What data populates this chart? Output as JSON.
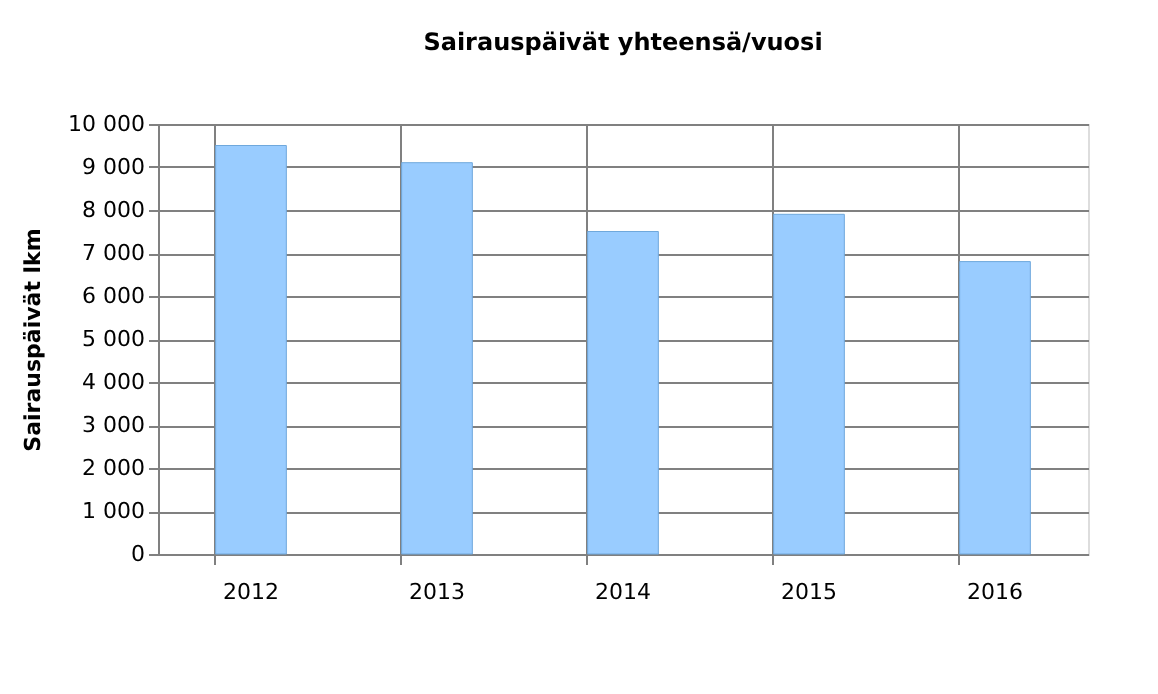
{
  "chart_data": {
    "type": "bar",
    "title": "Sairauspäivät yhteensä/vuosi",
    "ylabel": "Sairauspäivät  lkm",
    "categories": [
      "2012",
      "2013",
      "2014",
      "2015",
      "2016"
    ],
    "values": [
      9500,
      9100,
      7500,
      7900,
      6800
    ],
    "color": "#99ccff",
    "ylim": [
      0,
      10000
    ],
    "yticks": [
      0,
      {
        "value": 1000,
        "label": "1 000"
      },
      {
        "value": 2000,
        "label": "2 000"
      },
      {
        "value": 3000,
        "label": "3 000"
      },
      {
        "value": 4000,
        "label": "4 000"
      },
      {
        "value": 5000,
        "label": "5 000"
      },
      {
        "value": 6000,
        "label": "6 000"
      },
      {
        "value": 7000,
        "label": "7 000"
      },
      {
        "value": 8000,
        "label": "8 000"
      },
      {
        "value": 9000,
        "label": "9 000"
      },
      {
        "value": 10000,
        "label": "10 000"
      }
    ],
    "grid": true
  }
}
